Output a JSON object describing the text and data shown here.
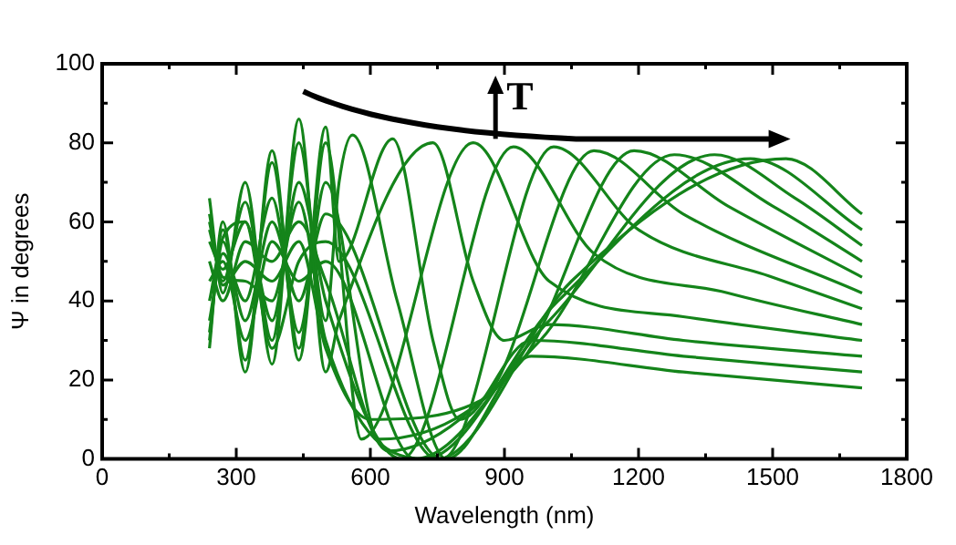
{
  "chart_data": {
    "type": "line",
    "xlabel": "Wavelength (nm)",
    "ylabel": "Ψ in degrees",
    "annotations": [
      "T"
    ],
    "xlim": [
      0,
      1800
    ],
    "ylim": [
      0,
      100
    ],
    "xticks": [
      0,
      {
        "value": 150,
        "label": null
      },
      300,
      {
        "value": 450,
        "label": null
      },
      600,
      {
        "value": 750,
        "label": null
      },
      900,
      {
        "value": 1050,
        "label": null
      },
      1200,
      {
        "value": 1350,
        "label": null
      },
      1500,
      {
        "value": 1650,
        "label": null
      },
      1800
    ],
    "yticks": [
      0,
      {
        "value": 10,
        "label": null
      },
      20,
      {
        "value": 30,
        "label": null
      },
      40,
      {
        "value": 50,
        "label": null
      },
      60,
      {
        "value": 70,
        "label": null
      },
      80,
      {
        "value": 90,
        "label": null
      },
      100
    ],
    "grid": false,
    "legend": false,
    "marker": "none",
    "line_style": "solid",
    "series": [
      {
        "color": "#14841a",
        "x": [
          240,
          270,
          320,
          380,
          440,
          500,
          530,
          560,
          660,
          770,
          960,
          1300,
          1700
        ],
        "values": [
          60,
          45,
          65,
          30,
          80,
          35,
          70,
          82,
          40,
          0,
          26,
          22,
          18
        ]
      },
      {
        "color": "#14841a",
        "x": [
          240,
          270,
          320,
          380,
          440,
          500,
          530,
          650,
          740,
          800,
          960,
          1300,
          1700
        ],
        "values": [
          30,
          58,
          25,
          75,
          28,
          84,
          50,
          81,
          30,
          10,
          30,
          26,
          22
        ]
      },
      {
        "color": "#14841a",
        "x": [
          240,
          270,
          320,
          380,
          440,
          500,
          530,
          740,
          830,
          900,
          1000,
          1300,
          1700
        ],
        "values": [
          66,
          42,
          70,
          24,
          86,
          22,
          35,
          80,
          45,
          30,
          34,
          30,
          26
        ]
      },
      {
        "color": "#14841a",
        "x": [
          240,
          270,
          320,
          380,
          440,
          500,
          580,
          830,
          1000,
          1300,
          1700
        ],
        "values": [
          28,
          60,
          22,
          78,
          25,
          80,
          5,
          80,
          45,
          36,
          30
        ]
      },
      {
        "color": "#14841a",
        "x": [
          240,
          270,
          320,
          380,
          440,
          500,
          670,
          920,
          1100,
          1400,
          1700
        ],
        "values": [
          55,
          48,
          60,
          35,
          70,
          40,
          0,
          79,
          52,
          42,
          34
        ]
      },
      {
        "color": "#14841a",
        "x": [
          240,
          270,
          320,
          380,
          440,
          500,
          760,
          1010,
          1200,
          1500,
          1700
        ],
        "values": [
          40,
          55,
          35,
          60,
          40,
          62,
          0,
          79,
          58,
          46,
          38
        ]
      },
      {
        "color": "#14841a",
        "x": [
          240,
          270,
          320,
          380,
          440,
          500,
          600,
          850,
          1100,
          1300,
          1700
        ],
        "values": [
          62,
          44,
          50,
          45,
          55,
          28,
          10,
          15,
          78,
          62,
          42
        ]
      },
      {
        "color": "#14841a",
        "x": [
          240,
          270,
          320,
          380,
          440,
          500,
          620,
          940,
          1190,
          1400,
          1700
        ],
        "values": [
          35,
          52,
          40,
          66,
          32,
          70,
          5,
          25,
          78,
          64,
          46
        ]
      },
      {
        "color": "#14841a",
        "x": [
          240,
          270,
          320,
          380,
          440,
          500,
          640,
          980,
          1280,
          1500,
          1700
        ],
        "values": [
          50,
          40,
          55,
          50,
          60,
          45,
          2,
          30,
          77,
          64,
          50
        ]
      },
      {
        "color": "#14841a",
        "x": [
          240,
          270,
          320,
          380,
          440,
          500,
          700,
          1000,
          1370,
          1550,
          1700
        ],
        "values": [
          45,
          50,
          30,
          55,
          45,
          50,
          0,
          35,
          77,
          66,
          54
        ]
      },
      {
        "color": "#14841a",
        "x": [
          240,
          270,
          320,
          380,
          440,
          500,
          720,
          1020,
          1450,
          1700
        ],
        "values": [
          58,
          46,
          45,
          40,
          65,
          30,
          0,
          40,
          76,
          58
        ]
      },
      {
        "color": "#14841a",
        "x": [
          240,
          270,
          320,
          380,
          440,
          500,
          750,
          1050,
          1530,
          1700
        ],
        "values": [
          32,
          56,
          60,
          28,
          50,
          55,
          0,
          45,
          76,
          62
        ]
      }
    ]
  }
}
